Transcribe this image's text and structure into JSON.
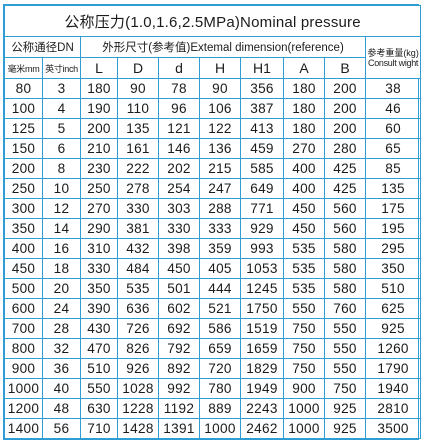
{
  "title": "公称压力(1.0,1.6,2.5MPa)Nominal pressure",
  "header": {
    "nominal_diameter": "公称通径DN",
    "external_dimension": "外形尺寸(参考值)Extemal dimension(reference)",
    "weight_cn": "参考重量(kg)",
    "weight_en": "Consult wight",
    "mm_label": "毫米mm",
    "inch_label": "英寸inch",
    "columns": [
      "L",
      "D",
      "d",
      "H",
      "H1",
      "A",
      "B"
    ]
  },
  "rows": [
    [
      "80",
      "3",
      "180",
      "90",
      "78",
      "90",
      "356",
      "180",
      "200",
      "38"
    ],
    [
      "100",
      "4",
      "190",
      "110",
      "96",
      "106",
      "387",
      "180",
      "200",
      "46"
    ],
    [
      "125",
      "5",
      "200",
      "135",
      "121",
      "122",
      "413",
      "180",
      "200",
      "60"
    ],
    [
      "150",
      "6",
      "210",
      "161",
      "146",
      "136",
      "459",
      "270",
      "280",
      "65"
    ],
    [
      "200",
      "8",
      "230",
      "222",
      "202",
      "215",
      "585",
      "400",
      "425",
      "85"
    ],
    [
      "250",
      "10",
      "250",
      "278",
      "254",
      "247",
      "649",
      "400",
      "425",
      "135"
    ],
    [
      "300",
      "12",
      "270",
      "330",
      "303",
      "288",
      "771",
      "450",
      "560",
      "175"
    ],
    [
      "350",
      "14",
      "290",
      "381",
      "330",
      "333",
      "929",
      "450",
      "560",
      "195"
    ],
    [
      "400",
      "16",
      "310",
      "432",
      "398",
      "359",
      "993",
      "535",
      "580",
      "295"
    ],
    [
      "450",
      "18",
      "330",
      "484",
      "450",
      "405",
      "1053",
      "535",
      "580",
      "350"
    ],
    [
      "500",
      "20",
      "350",
      "535",
      "501",
      "444",
      "1245",
      "535",
      "580",
      "510"
    ],
    [
      "600",
      "24",
      "390",
      "636",
      "602",
      "521",
      "1750",
      "550",
      "760",
      "625"
    ],
    [
      "700",
      "28",
      "430",
      "726",
      "692",
      "586",
      "1519",
      "750",
      "550",
      "925"
    ],
    [
      "800",
      "32",
      "470",
      "826",
      "792",
      "659",
      "1659",
      "750",
      "550",
      "1260"
    ],
    [
      "900",
      "36",
      "510",
      "926",
      "892",
      "720",
      "1829",
      "750",
      "550",
      "1790"
    ],
    [
      "1000",
      "40",
      "550",
      "1028",
      "992",
      "780",
      "1949",
      "900",
      "750",
      "1940"
    ],
    [
      "1200",
      "48",
      "630",
      "1228",
      "1192",
      "889",
      "2243",
      "1000",
      "925",
      "2810"
    ],
    [
      "1400",
      "56",
      "710",
      "1428",
      "1391",
      "1000",
      "2462",
      "1000",
      "925",
      "3500"
    ]
  ]
}
